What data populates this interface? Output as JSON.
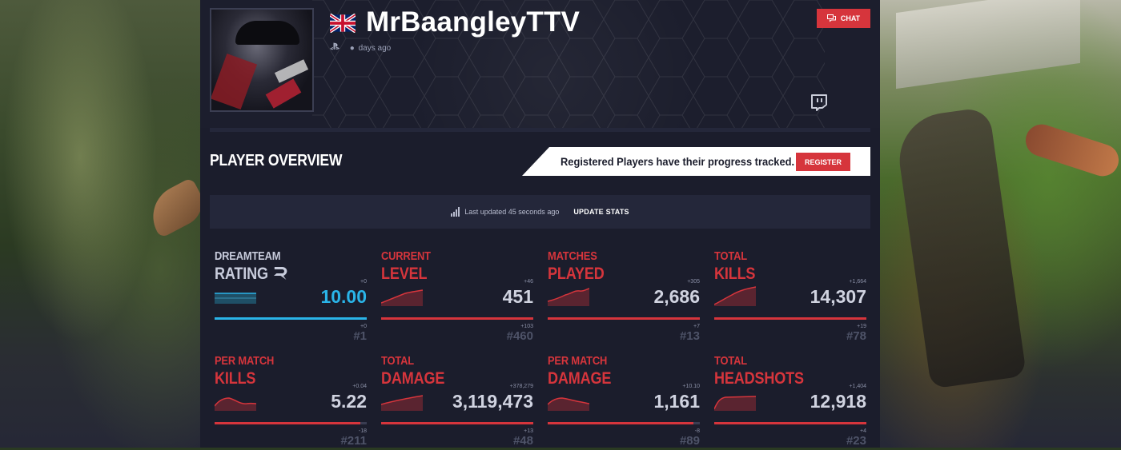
{
  "profile": {
    "username": "MrBaangleyTTV",
    "last_seen": "days ago",
    "platform_icon": "playstation-icon",
    "flag": "uk-flag-icon",
    "chat_label": "CHAT"
  },
  "overview": {
    "title": "PLAYER OVERVIEW",
    "register_text": "Registered Players have their progress tracked.",
    "register_label": "REGISTER",
    "last_updated": "Last updated 45 seconds ago",
    "update_label": "UPDATE STATS"
  },
  "stats": [
    {
      "label1": "DREAMTEAM",
      "label2": "RATING",
      "delta": "+0",
      "value": "10.00",
      "bar_fill": 1.0,
      "rank_delta": "+0",
      "rank": "#1"
    },
    {
      "label1": "CURRENT",
      "label2": "LEVEL",
      "delta": "+46",
      "value": "451",
      "bar_fill": 1.0,
      "rank_delta": "+103",
      "rank": "#460"
    },
    {
      "label1": "MATCHES",
      "label2": "PLAYED",
      "delta": "+305",
      "value": "2,686",
      "bar_fill": 1.0,
      "rank_delta": "+7",
      "rank": "#13"
    },
    {
      "label1": "TOTAL",
      "label2": "KILLS",
      "delta": "+1,664",
      "value": "14,307",
      "bar_fill": 1.0,
      "rank_delta": "+19",
      "rank": "#78"
    },
    {
      "label1": "PER MATCH",
      "label2": "KILLS",
      "delta": "+0.04",
      "value": "5.22",
      "bar_fill": 0.96,
      "rank_delta": "-18",
      "rank": "#211"
    },
    {
      "label1": "TOTAL",
      "label2": "DAMAGE",
      "delta": "+378,279",
      "value": "3,119,473",
      "bar_fill": 1.0,
      "rank_delta": "+13",
      "rank": "#48"
    },
    {
      "label1": "PER MATCH",
      "label2": "DAMAGE",
      "delta": "+10.10",
      "value": "1,161",
      "bar_fill": 0.96,
      "rank_delta": "-8",
      "rank": "#89"
    },
    {
      "label1": "TOTAL",
      "label2": "HEADSHOTS",
      "delta": "+1,404",
      "value": "12,918",
      "bar_fill": 1.0,
      "rank_delta": "+4",
      "rank": "#23"
    }
  ],
  "colors": {
    "accent_red": "#d6353c",
    "accent_blue": "#2ab4e8",
    "panel_bg": "#1b1d2c"
  }
}
